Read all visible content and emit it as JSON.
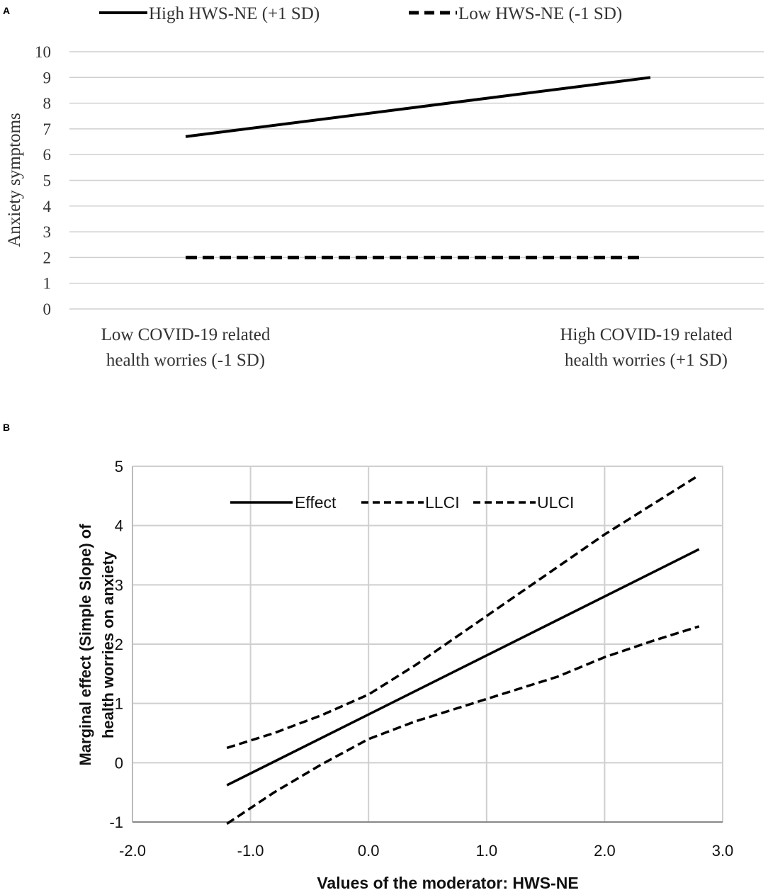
{
  "panels": {
    "a": {
      "label": "A"
    },
    "b": {
      "label": "B"
    }
  },
  "chart_data": [
    {
      "type": "line",
      "panel": "A",
      "title": "",
      "xlabel": "",
      "ylabel": "Anxiety symptoms",
      "ylim": [
        0,
        10
      ],
      "yticks": [
        "0",
        "1",
        "2",
        "3",
        "4",
        "5",
        "6",
        "7",
        "8",
        "9",
        "10"
      ],
      "categories": [
        [
          "Low COVID-19 related",
          "health worries (-1 SD)"
        ],
        [
          "High COVID-19 related",
          "health worries (+1 SD)"
        ]
      ],
      "series": [
        {
          "name": "High HWS-NE (+1 SD)",
          "style": "solid",
          "values": [
            6.7,
            9.0
          ]
        },
        {
          "name": "Low HWS-NE (-1 SD)",
          "style": "dashed",
          "values": [
            2.0,
            2.0
          ]
        }
      ],
      "legend": "top",
      "grid": true
    },
    {
      "type": "line",
      "panel": "B",
      "title": "",
      "xlabel": "Values of the moderator: HWS-NE",
      "ylabel": [
        "Marginal effect (Simple Slope) of",
        "health worries on anxiety"
      ],
      "xlim": [
        -2.0,
        3.0
      ],
      "ylim": [
        -1,
        5
      ],
      "xticks": [
        "-2.0",
        "-1.0",
        "0.0",
        "1.0",
        "2.0",
        "3.0"
      ],
      "yticks": [
        "-1",
        "0",
        "1",
        "2",
        "3",
        "4",
        "5"
      ],
      "series": [
        {
          "name": "Effect",
          "style": "solid",
          "x": [
            -1.2,
            2.8
          ],
          "y": [
            -0.38,
            3.6
          ]
        },
        {
          "name": "LLCI",
          "style": "dashed",
          "x": [
            -1.2,
            -0.8,
            -0.4,
            0.0,
            0.4,
            0.8,
            1.2,
            1.6,
            2.0,
            2.4,
            2.8
          ],
          "y": [
            -1.03,
            -0.5,
            -0.03,
            0.4,
            0.7,
            0.95,
            1.2,
            1.45,
            1.78,
            2.05,
            2.3
          ]
        },
        {
          "name": "ULCI",
          "style": "dashed",
          "x": [
            -1.2,
            -0.8,
            -0.4,
            0.0,
            0.4,
            0.8,
            1.2,
            1.6,
            2.0,
            2.4,
            2.8
          ],
          "y": [
            0.25,
            0.5,
            0.8,
            1.15,
            1.65,
            2.2,
            2.75,
            3.3,
            3.85,
            4.35,
            4.85
          ]
        }
      ],
      "legend": "top-left",
      "grid": true
    }
  ]
}
